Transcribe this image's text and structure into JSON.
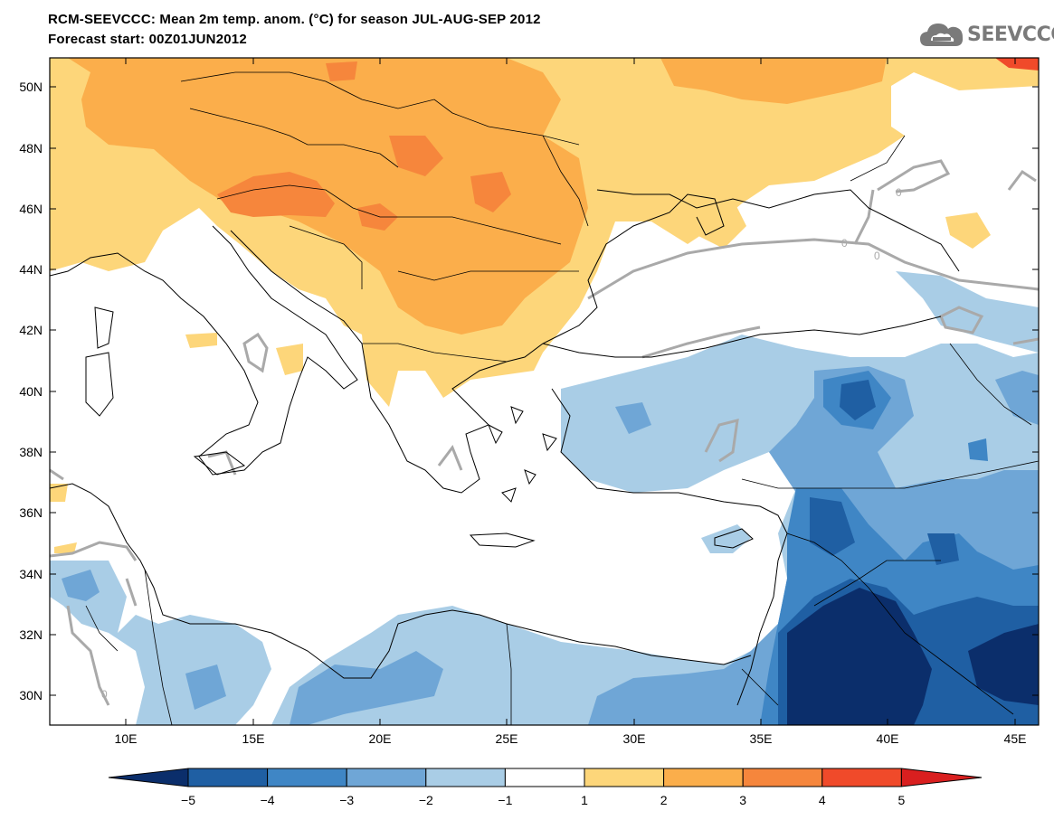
{
  "header": {
    "title_line1": "RCM-SEEVCCC: Mean 2m temp. anom. (°C) for season JUL-AUG-SEP 2012",
    "title_line2": "Forecast start: 00Z01JUN2012"
  },
  "logo": {
    "text": "SEEVCCC",
    "icon": "cloud-icon"
  },
  "map": {
    "lat_labels": [
      "50N",
      "48N",
      "46N",
      "44N",
      "42N",
      "40N",
      "38N",
      "36N",
      "34N",
      "32N",
      "30N"
    ],
    "lon_labels": [
      "10E",
      "15E",
      "20E",
      "25E",
      "30E",
      "35E",
      "40E",
      "45E"
    ],
    "contour_labels": [
      "0",
      "0",
      "0",
      "0"
    ]
  },
  "colorbar": {
    "levels": [
      "−5",
      "−4",
      "−3",
      "−2",
      "−1",
      "1",
      "2",
      "3",
      "4",
      "5"
    ],
    "colors": [
      "#0b2e6b",
      "#1f5fa3",
      "#3f86c5",
      "#6fa6d6",
      "#a9cde6",
      "#ffffff",
      "#fdd67a",
      "#fbae4b",
      "#f6863c",
      "#f04a2a",
      "#d91f1f"
    ]
  }
}
